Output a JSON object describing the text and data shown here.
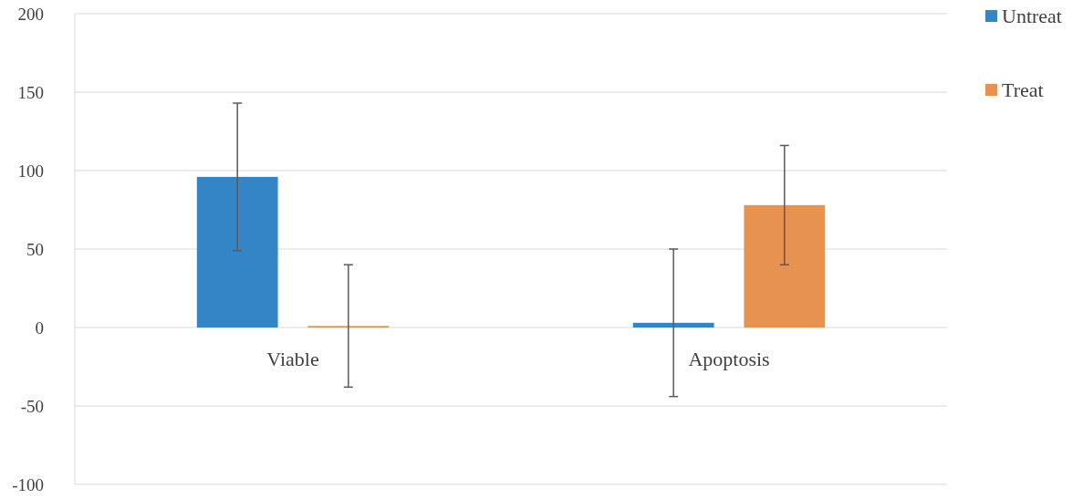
{
  "chart_data": {
    "type": "bar",
    "categories": [
      "Viable",
      "Apoptosis"
    ],
    "series": [
      {
        "name": "Untreat",
        "color": "#3385c6",
        "values": [
          96,
          3
        ],
        "errors": [
          47,
          47
        ]
      },
      {
        "name": "Treat",
        "color": "#e8924f",
        "values": [
          1,
          78
        ],
        "errors": [
          39,
          38
        ]
      }
    ],
    "ylim": [
      -100,
      200
    ],
    "yticks": [
      -100,
      -50,
      0,
      50,
      100,
      150,
      200
    ],
    "grid": "y",
    "legend": "top right"
  }
}
